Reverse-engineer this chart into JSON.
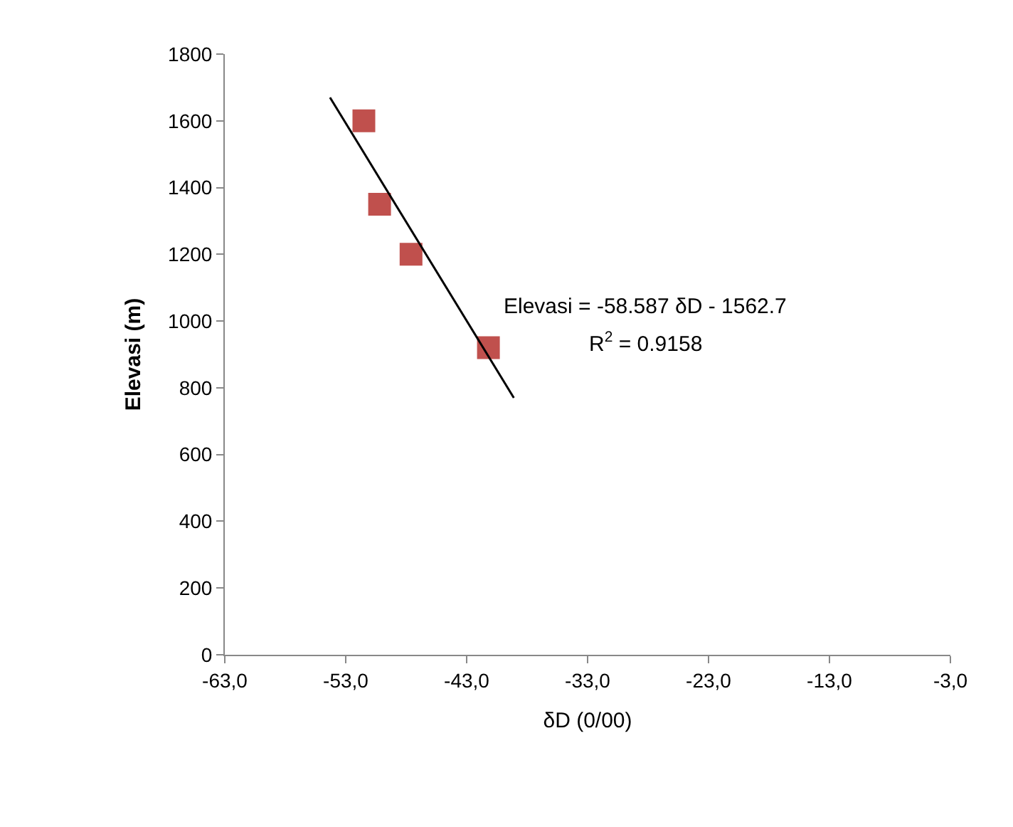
{
  "chart_data": {
    "type": "scatter",
    "xlabel": "δD (0/00)",
    "ylabel": "Elevasi (m)",
    "xlim": [
      -63,
      -3
    ],
    "xticks": [
      {
        "value": -63,
        "label": "-63,0"
      },
      {
        "value": -53,
        "label": "-53,0"
      },
      {
        "value": -43,
        "label": "-43,0"
      },
      {
        "value": -33,
        "label": "-33,0"
      },
      {
        "value": -23,
        "label": "-23,0"
      },
      {
        "value": -13,
        "label": "-13,0"
      },
      {
        "value": -3,
        "label": "-3,0"
      }
    ],
    "ylim": [
      0,
      1800
    ],
    "yticks": [
      0,
      200,
      400,
      600,
      800,
      1000,
      1200,
      1400,
      1600,
      1800
    ],
    "grid": false,
    "series": [
      {
        "color": "#c0504d",
        "marker": "square",
        "x": [
          -51.5,
          -50.2,
          -47.6,
          -41.2
        ],
        "values": [
          1600,
          1350,
          1200,
          920
        ]
      },
      {
        "type": "line",
        "color": "#000000",
        "marker": "none",
        "x": [
          -54.3,
          -39.1
        ],
        "values": [
          1670,
          770
        ]
      }
    ],
    "annotations": [
      "Elevasi = -58.587 δD - 1562.7",
      "R$^{2}$ = 0.9158"
    ]
  }
}
